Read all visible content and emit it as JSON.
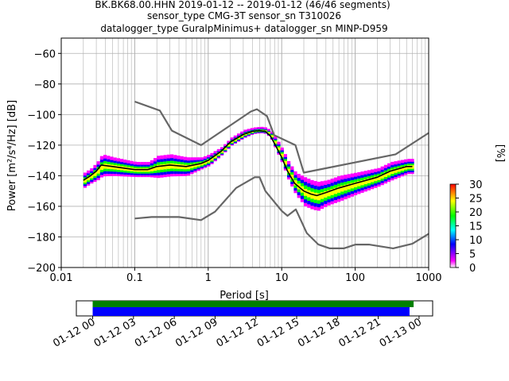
{
  "chart_data": {
    "type": "heatmap",
    "title_lines": [
      "BK.BK68.00.HHN   2019-01-12 -- 2019-01-12  (46/46 segments)",
      "sensor_type CMG-3T sensor_sn T310026",
      "datalogger_type GuralpMinimus+ datalogger_sn MINP-D959"
    ],
    "xlabel": "Period [s]",
    "ylabel": "Power [m²/s⁴/Hz] [dB]",
    "xscale": "log",
    "xlim": [
      0.01,
      1000
    ],
    "ylim": [
      -200,
      -50
    ],
    "x_ticks": [
      {
        "value": 0.01,
        "label": "0.01"
      },
      {
        "value": 0.1,
        "label": "0.1"
      },
      {
        "value": 1,
        "label": "1"
      },
      {
        "value": 10,
        "label": "10"
      },
      {
        "value": 100,
        "label": "100"
      },
      {
        "value": 1000,
        "label": "1000"
      }
    ],
    "y_ticks": [
      {
        "value": -60,
        "label": "−60"
      },
      {
        "value": -80,
        "label": "−80"
      },
      {
        "value": -100,
        "label": "−100"
      },
      {
        "value": -120,
        "label": "−120"
      },
      {
        "value": -140,
        "label": "−140"
      },
      {
        "value": -160,
        "label": "−160"
      },
      {
        "value": -180,
        "label": "−180"
      },
      {
        "value": -200,
        "label": "−200"
      }
    ],
    "grid": true,
    "colorbar": {
      "label": "[%]",
      "range": [
        0,
        30
      ],
      "ticks": [
        {
          "value": 0,
          "label": "0"
        },
        {
          "value": 5,
          "label": "5"
        },
        {
          "value": 10,
          "label": "10"
        },
        {
          "value": 15,
          "label": "15"
        },
        {
          "value": 20,
          "label": "20"
        },
        {
          "value": 25,
          "label": "25"
        },
        {
          "value": 30,
          "label": "30"
        }
      ],
      "colors": [
        "#ffffff",
        "#ff00ff",
        "#0000ff",
        "#00ffff",
        "#00ff00",
        "#ffff00",
        "#ff0000"
      ]
    },
    "series": [
      {
        "role": "high-noise-model",
        "color": "#666666",
        "points": [
          [
            0.1,
            -91.5
          ],
          [
            0.22,
            -97.4
          ],
          [
            0.32,
            -110.5
          ],
          [
            0.8,
            -120
          ],
          [
            3.8,
            -98
          ],
          [
            4.6,
            -96.5
          ],
          [
            6.3,
            -101
          ],
          [
            7.9,
            -113.5
          ],
          [
            15.4,
            -120
          ],
          [
            20,
            -138
          ],
          [
            354.8,
            -126
          ],
          [
            1000,
            -112
          ]
        ]
      },
      {
        "role": "low-noise-model",
        "color": "#666666",
        "points": [
          [
            0.1,
            -168
          ],
          [
            0.17,
            -167
          ],
          [
            0.4,
            -167
          ],
          [
            0.8,
            -169
          ],
          [
            1.24,
            -163.5
          ],
          [
            2.4,
            -148
          ],
          [
            4.3,
            -141
          ],
          [
            5,
            -141
          ],
          [
            6,
            -150
          ],
          [
            10,
            -163
          ],
          [
            12,
            -166.2
          ],
          [
            15.6,
            -162
          ],
          [
            21.9,
            -177.5
          ],
          [
            31.6,
            -185
          ],
          [
            45,
            -187.5
          ],
          [
            70,
            -187.5
          ],
          [
            101,
            -185
          ],
          [
            154,
            -185
          ],
          [
            328,
            -187.5
          ],
          [
            600,
            -184.5
          ],
          [
            1000,
            -178
          ]
        ]
      },
      {
        "role": "median-psd",
        "color": "#000000",
        "points": [
          [
            0.02,
            -143
          ],
          [
            0.025,
            -140
          ],
          [
            0.03,
            -137
          ],
          [
            0.035,
            -133
          ],
          [
            0.05,
            -134
          ],
          [
            0.1,
            -136
          ],
          [
            0.15,
            -136
          ],
          [
            0.2,
            -134
          ],
          [
            0.3,
            -133
          ],
          [
            0.5,
            -134
          ],
          [
            0.8,
            -132
          ],
          [
            1,
            -130
          ],
          [
            1.5,
            -124
          ],
          [
            2,
            -118
          ],
          [
            3,
            -113
          ],
          [
            4,
            -111
          ],
          [
            5,
            -110.5
          ],
          [
            6,
            -111
          ],
          [
            7,
            -114
          ],
          [
            8,
            -119
          ],
          [
            10,
            -128
          ],
          [
            12,
            -137
          ],
          [
            15,
            -145
          ],
          [
            20,
            -150
          ],
          [
            25,
            -152
          ],
          [
            30,
            -153
          ],
          [
            40,
            -151
          ],
          [
            60,
            -148
          ],
          [
            100,
            -145
          ],
          [
            200,
            -141
          ],
          [
            300,
            -137
          ],
          [
            500,
            -134
          ],
          [
            600,
            -134
          ]
        ]
      }
    ],
    "density_band": {
      "period": [
        0.02,
        0.025,
        0.03,
        0.035,
        0.05,
        0.1,
        0.15,
        0.2,
        0.3,
        0.5,
        0.8,
        1,
        1.5,
        2,
        3,
        4,
        5,
        6,
        7,
        8,
        10,
        12,
        15,
        20,
        25,
        30,
        40,
        60,
        100,
        200,
        300,
        500,
        600
      ],
      "spread_db": [
        4,
        4,
        5,
        6,
        5,
        4,
        4,
        6,
        6,
        5,
        3,
        3,
        2,
        2,
        2,
        1.5,
        1.5,
        1.5,
        2,
        3,
        4,
        5,
        6,
        8,
        8,
        8,
        7,
        7,
        6,
        5,
        5,
        4,
        4
      ]
    },
    "time_coverage": {
      "tick_labels": [
        "01-12 00",
        "01-12 03",
        "01-12 06",
        "01-12 09",
        "01-12 12",
        "01-12 15",
        "01-12 18",
        "01-12 21",
        "01-13 00"
      ],
      "data_bar": {
        "start_hours": 0,
        "end_hours": 23.6,
        "color": "#008000"
      },
      "used_bar": {
        "start_hours": 0,
        "end_hours": 23.3,
        "color": "#0000ff"
      },
      "xlim_hours": [
        -1.2,
        25
      ]
    }
  }
}
